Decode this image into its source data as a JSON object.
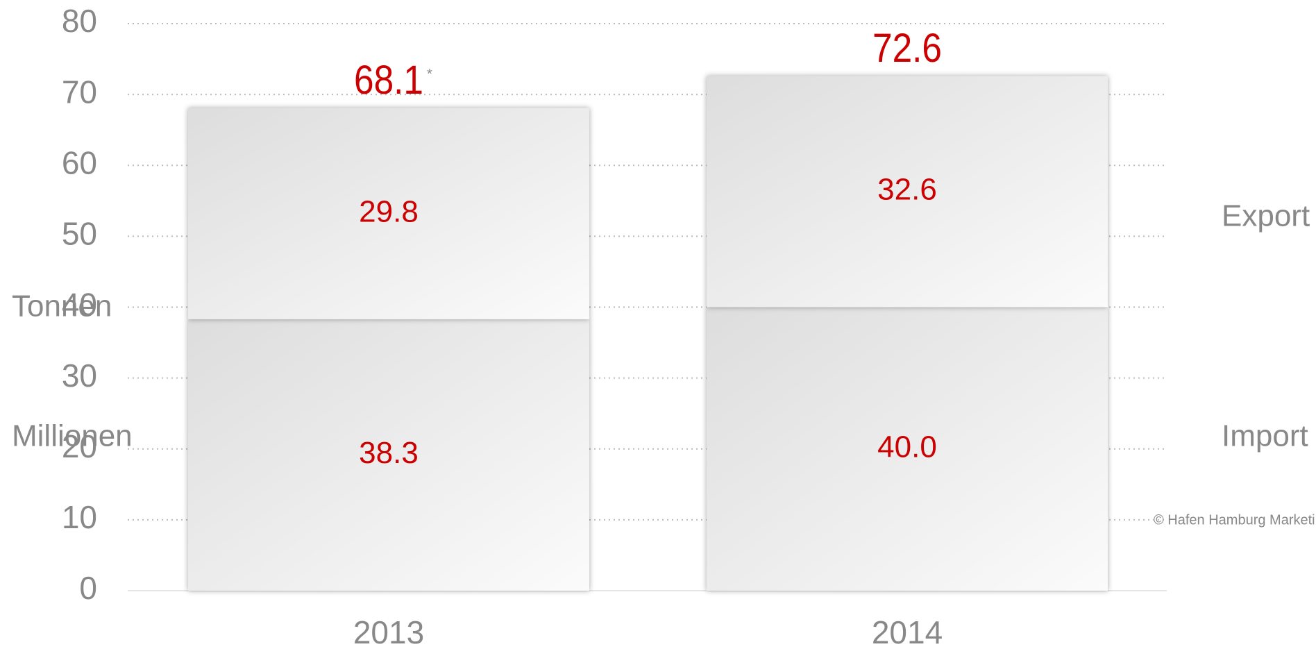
{
  "chart_data": {
    "type": "stacked_bar",
    "categories": [
      "2013",
      "2014"
    ],
    "series": [
      {
        "name": "Import",
        "values": [
          38.3,
          40.0
        ],
        "value_labels": [
          "38.3",
          "40.0"
        ]
      },
      {
        "name": "Export",
        "values": [
          29.8,
          32.6
        ],
        "value_labels": [
          "29.8",
          "32.6"
        ]
      }
    ],
    "totals": [
      68.1,
      72.6
    ],
    "total_marker": "*",
    "y_axis_label": [
      "Tonnen",
      "Millionen"
    ],
    "ylim": [
      0,
      80
    ],
    "yticks": [
      0,
      10,
      20,
      30,
      40,
      50,
      60,
      70,
      80
    ],
    "grid": true,
    "label_color": "#cc0000",
    "copyright": "© Hafen Hamburg Marketing"
  }
}
